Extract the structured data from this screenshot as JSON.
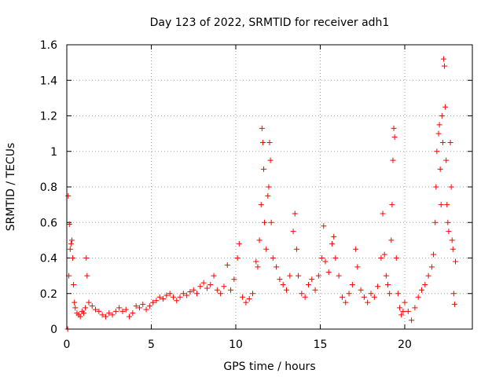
{
  "chart_data": {
    "type": "scatter",
    "title": "Day 123 of 2022, SRMTID for receiver adh1",
    "xlabel": "GPS time / hours",
    "ylabel": "SRMTID / TECUs",
    "xlim": [
      0,
      24
    ],
    "ylim": [
      0,
      1.6
    ],
    "xticks": [
      0,
      5,
      10,
      15,
      20
    ],
    "xtick_labels": [
      "0",
      "5",
      "10",
      "15",
      "20"
    ],
    "yticks": [
      0,
      0.2,
      0.4,
      0.6,
      0.8,
      1.0,
      1.2,
      1.4,
      1.6
    ],
    "ytick_labels": [
      "0",
      "0.2",
      "0.4",
      "0.6",
      "0.8",
      "1",
      "1.2",
      "1.4",
      "1.6"
    ],
    "grid": true,
    "marker": "+",
    "color": "#ff0000",
    "series": [
      {
        "name": "SRMTID",
        "points": [
          [
            0.05,
            0.0
          ],
          [
            0.08,
            0.75
          ],
          [
            0.12,
            0.3
          ],
          [
            0.15,
            0.59
          ],
          [
            0.2,
            0.45
          ],
          [
            0.25,
            0.48
          ],
          [
            0.3,
            0.5
          ],
          [
            0.35,
            0.4
          ],
          [
            0.4,
            0.25
          ],
          [
            0.45,
            0.15
          ],
          [
            0.5,
            0.12
          ],
          [
            0.6,
            0.09
          ],
          [
            0.7,
            0.08
          ],
          [
            0.8,
            0.07
          ],
          [
            0.9,
            0.1
          ],
          [
            1.0,
            0.09
          ],
          [
            1.1,
            0.12
          ],
          [
            1.15,
            0.4
          ],
          [
            1.2,
            0.3
          ],
          [
            1.3,
            0.15
          ],
          [
            1.5,
            0.13
          ],
          [
            1.7,
            0.11
          ],
          [
            1.9,
            0.1
          ],
          [
            2.1,
            0.08
          ],
          [
            2.3,
            0.07
          ],
          [
            2.5,
            0.09
          ],
          [
            2.7,
            0.08
          ],
          [
            2.9,
            0.1
          ],
          [
            3.1,
            0.12
          ],
          [
            3.3,
            0.1
          ],
          [
            3.5,
            0.11
          ],
          [
            3.7,
            0.07
          ],
          [
            3.9,
            0.09
          ],
          [
            4.1,
            0.13
          ],
          [
            4.3,
            0.12
          ],
          [
            4.5,
            0.14
          ],
          [
            4.7,
            0.11
          ],
          [
            4.9,
            0.13
          ],
          [
            5.1,
            0.15
          ],
          [
            5.3,
            0.16
          ],
          [
            5.5,
            0.18
          ],
          [
            5.7,
            0.17
          ],
          [
            5.9,
            0.19
          ],
          [
            6.1,
            0.2
          ],
          [
            6.3,
            0.18
          ],
          [
            6.5,
            0.16
          ],
          [
            6.7,
            0.18
          ],
          [
            6.9,
            0.2
          ],
          [
            7.1,
            0.19
          ],
          [
            7.3,
            0.21
          ],
          [
            7.5,
            0.22
          ],
          [
            7.7,
            0.2
          ],
          [
            7.9,
            0.24
          ],
          [
            8.1,
            0.26
          ],
          [
            8.3,
            0.23
          ],
          [
            8.5,
            0.25
          ],
          [
            8.7,
            0.3
          ],
          [
            8.9,
            0.22
          ],
          [
            9.1,
            0.2
          ],
          [
            9.3,
            0.24
          ],
          [
            9.5,
            0.36
          ],
          [
            9.7,
            0.22
          ],
          [
            9.9,
            0.28
          ],
          [
            10.1,
            0.4
          ],
          [
            10.2,
            0.48
          ],
          [
            10.4,
            0.18
          ],
          [
            10.6,
            0.15
          ],
          [
            10.8,
            0.17
          ],
          [
            11.0,
            0.2
          ],
          [
            11.2,
            0.38
          ],
          [
            11.3,
            0.35
          ],
          [
            11.4,
            0.5
          ],
          [
            11.5,
            0.7
          ],
          [
            11.55,
            1.13
          ],
          [
            11.6,
            1.05
          ],
          [
            11.65,
            0.9
          ],
          [
            11.7,
            0.6
          ],
          [
            11.8,
            0.45
          ],
          [
            11.9,
            0.75
          ],
          [
            11.95,
            0.8
          ],
          [
            12.0,
            1.05
          ],
          [
            12.05,
            0.95
          ],
          [
            12.1,
            0.6
          ],
          [
            12.2,
            0.4
          ],
          [
            12.4,
            0.35
          ],
          [
            12.6,
            0.28
          ],
          [
            12.8,
            0.25
          ],
          [
            13.0,
            0.22
          ],
          [
            13.2,
            0.3
          ],
          [
            13.4,
            0.55
          ],
          [
            13.5,
            0.65
          ],
          [
            13.6,
            0.45
          ],
          [
            13.7,
            0.3
          ],
          [
            13.9,
            0.2
          ],
          [
            14.1,
            0.18
          ],
          [
            14.3,
            0.25
          ],
          [
            14.5,
            0.28
          ],
          [
            14.7,
            0.22
          ],
          [
            14.9,
            0.3
          ],
          [
            15.1,
            0.4
          ],
          [
            15.2,
            0.58
          ],
          [
            15.3,
            0.38
          ],
          [
            15.5,
            0.32
          ],
          [
            15.7,
            0.48
          ],
          [
            15.8,
            0.52
          ],
          [
            15.9,
            0.4
          ],
          [
            16.1,
            0.3
          ],
          [
            16.3,
            0.18
          ],
          [
            16.5,
            0.15
          ],
          [
            16.7,
            0.2
          ],
          [
            16.9,
            0.25
          ],
          [
            17.1,
            0.45
          ],
          [
            17.2,
            0.35
          ],
          [
            17.4,
            0.22
          ],
          [
            17.6,
            0.18
          ],
          [
            17.8,
            0.15
          ],
          [
            18.0,
            0.2
          ],
          [
            18.2,
            0.18
          ],
          [
            18.4,
            0.24
          ],
          [
            18.6,
            0.4
          ],
          [
            18.7,
            0.65
          ],
          [
            18.8,
            0.42
          ],
          [
            18.9,
            0.3
          ],
          [
            19.0,
            0.25
          ],
          [
            19.1,
            0.2
          ],
          [
            19.2,
            0.5
          ],
          [
            19.25,
            0.7
          ],
          [
            19.3,
            0.95
          ],
          [
            19.35,
            1.13
          ],
          [
            19.4,
            1.08
          ],
          [
            19.5,
            0.4
          ],
          [
            19.6,
            0.2
          ],
          [
            19.7,
            0.12
          ],
          [
            19.8,
            0.08
          ],
          [
            19.9,
            0.1
          ],
          [
            20.0,
            0.15
          ],
          [
            20.2,
            0.1
          ],
          [
            20.4,
            0.05
          ],
          [
            20.6,
            0.12
          ],
          [
            20.8,
            0.18
          ],
          [
            21.0,
            0.22
          ],
          [
            21.2,
            0.25
          ],
          [
            21.4,
            0.3
          ],
          [
            21.6,
            0.35
          ],
          [
            21.7,
            0.42
          ],
          [
            21.8,
            0.6
          ],
          [
            21.85,
            0.8
          ],
          [
            21.9,
            1.0
          ],
          [
            22.0,
            1.1
          ],
          [
            22.05,
            1.15
          ],
          [
            22.1,
            0.9
          ],
          [
            22.15,
            0.7
          ],
          [
            22.2,
            1.2
          ],
          [
            22.25,
            1.05
          ],
          [
            22.3,
            1.52
          ],
          [
            22.35,
            1.48
          ],
          [
            22.4,
            1.25
          ],
          [
            22.45,
            0.95
          ],
          [
            22.5,
            0.7
          ],
          [
            22.55,
            0.6
          ],
          [
            22.6,
            0.55
          ],
          [
            22.7,
            1.05
          ],
          [
            22.75,
            0.8
          ],
          [
            22.8,
            0.5
          ],
          [
            22.85,
            0.45
          ],
          [
            22.9,
            0.2
          ],
          [
            22.95,
            0.14
          ],
          [
            23.0,
            0.38
          ]
        ]
      }
    ]
  }
}
